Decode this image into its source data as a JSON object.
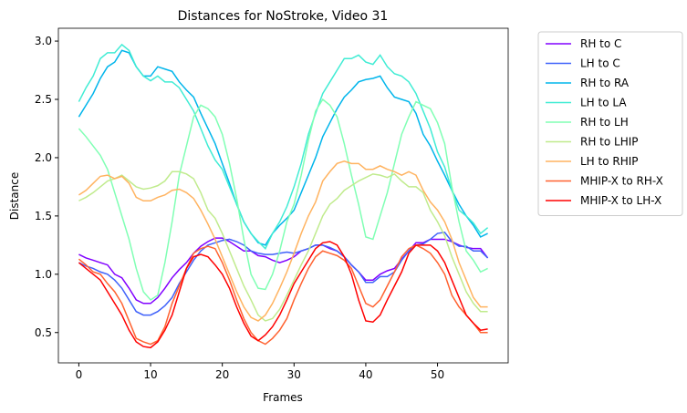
{
  "chart_data": {
    "type": "line",
    "title": "Distances for NoStroke, Video 31",
    "x_label": "Frames",
    "y_label": "Distance",
    "x": [
      0,
      1,
      2,
      3,
      4,
      5,
      6,
      7,
      8,
      9,
      10,
      11,
      12,
      13,
      14,
      15,
      16,
      17,
      18,
      19,
      20,
      21,
      22,
      23,
      24,
      25,
      26,
      27,
      28,
      29,
      30,
      31,
      32,
      33,
      34,
      35,
      36,
      37,
      38,
      39,
      40,
      41,
      42,
      43,
      44,
      45,
      46,
      47,
      48,
      49,
      50,
      51,
      52,
      53,
      54,
      55,
      56,
      57
    ],
    "xlim": [
      -2.85,
      59.85
    ],
    "xticks": [
      0,
      10,
      20,
      30,
      40,
      50
    ],
    "ylim": [
      0.24,
      3.11
    ],
    "yticks": [
      0.5,
      {
        "value": 1,
        "label": "1.0"
      },
      1.5,
      {
        "value": 2,
        "label": "2.0"
      },
      2.5,
      {
        "value": 3,
        "label": "3.0"
      }
    ],
    "legend": "outside upper right",
    "series": [
      {
        "name": "RH to C",
        "color": "#8000ff",
        "values": [
          1.17,
          1.14,
          1.12,
          1.1,
          1.08,
          1.0,
          0.97,
          0.88,
          0.78,
          0.75,
          0.75,
          0.8,
          0.88,
          0.97,
          1.04,
          1.1,
          1.18,
          1.24,
          1.28,
          1.31,
          1.31,
          1.28,
          1.24,
          1.2,
          1.2,
          1.16,
          1.15,
          1.12,
          1.1,
          1.12,
          1.15,
          1.2,
          1.22,
          1.25,
          1.25,
          1.22,
          1.2,
          1.15,
          1.08,
          1.02,
          0.95,
          0.95,
          1.0,
          1.03,
          1.05,
          1.13,
          1.2,
          1.27,
          1.27,
          1.3,
          1.3,
          1.3,
          1.28,
          1.25,
          1.23,
          1.22,
          1.22,
          1.14
        ]
      },
      {
        "name": "LH to C",
        "color": "#4062fa",
        "values": [
          1.1,
          1.07,
          1.05,
          1.02,
          1.0,
          0.95,
          0.88,
          0.78,
          0.68,
          0.65,
          0.65,
          0.68,
          0.73,
          0.8,
          0.92,
          1.02,
          1.12,
          1.2,
          1.25,
          1.27,
          1.29,
          1.3,
          1.28,
          1.25,
          1.2,
          1.18,
          1.17,
          1.17,
          1.18,
          1.19,
          1.18,
          1.2,
          1.22,
          1.25,
          1.25,
          1.23,
          1.2,
          1.15,
          1.08,
          1.02,
          0.93,
          0.93,
          0.98,
          0.98,
          1.02,
          1.12,
          1.2,
          1.25,
          1.26,
          1.3,
          1.35,
          1.36,
          1.28,
          1.24,
          1.24,
          1.2,
          1.2,
          1.14
        ]
      },
      {
        "name": "RH to RA",
        "color": "#00b5eb",
        "values": [
          2.35,
          2.45,
          2.55,
          2.68,
          2.78,
          2.82,
          2.92,
          2.9,
          2.78,
          2.7,
          2.7,
          2.78,
          2.76,
          2.74,
          2.65,
          2.58,
          2.52,
          2.38,
          2.25,
          2.12,
          1.95,
          1.78,
          1.6,
          1.45,
          1.35,
          1.27,
          1.25,
          1.35,
          1.42,
          1.48,
          1.55,
          1.7,
          1.85,
          2.0,
          2.18,
          2.3,
          2.42,
          2.52,
          2.58,
          2.65,
          2.67,
          2.68,
          2.7,
          2.6,
          2.52,
          2.5,
          2.48,
          2.38,
          2.2,
          2.1,
          1.97,
          1.85,
          1.72,
          1.6,
          1.5,
          1.42,
          1.32,
          1.35
        ]
      },
      {
        "name": "LH to LA",
        "color": "#40ecd4",
        "values": [
          2.48,
          2.6,
          2.7,
          2.85,
          2.9,
          2.9,
          2.97,
          2.92,
          2.78,
          2.7,
          2.66,
          2.7,
          2.65,
          2.65,
          2.6,
          2.5,
          2.4,
          2.25,
          2.1,
          1.98,
          1.9,
          1.75,
          1.6,
          1.45,
          1.35,
          1.28,
          1.22,
          1.35,
          1.45,
          1.58,
          1.75,
          1.95,
          2.2,
          2.38,
          2.55,
          2.65,
          2.75,
          2.85,
          2.85,
          2.88,
          2.82,
          2.8,
          2.88,
          2.78,
          2.72,
          2.7,
          2.65,
          2.55,
          2.4,
          2.25,
          2.05,
          1.92,
          1.72,
          1.55,
          1.5,
          1.44,
          1.35,
          1.4
        ]
      },
      {
        "name": "RH to LH",
        "color": "#80ffb4",
        "values": [
          2.25,
          2.18,
          2.1,
          2.02,
          1.9,
          1.7,
          1.5,
          1.3,
          1.05,
          0.85,
          0.78,
          0.82,
          1.1,
          1.45,
          1.85,
          2.1,
          2.35,
          2.45,
          2.42,
          2.35,
          2.2,
          1.95,
          1.65,
          1.3,
          1.0,
          0.88,
          0.87,
          1.0,
          1.2,
          1.45,
          1.6,
          1.85,
          2.15,
          2.4,
          2.5,
          2.45,
          2.35,
          2.12,
          1.85,
          1.6,
          1.32,
          1.3,
          1.5,
          1.7,
          1.95,
          2.2,
          2.35,
          2.48,
          2.45,
          2.42,
          2.3,
          2.12,
          1.75,
          1.45,
          1.2,
          1.12,
          1.02,
          1.05
        ]
      },
      {
        "name": "RH to LHIP",
        "color": "#c0eb8d",
        "values": [
          1.63,
          1.66,
          1.7,
          1.75,
          1.8,
          1.82,
          1.85,
          1.8,
          1.75,
          1.73,
          1.74,
          1.76,
          1.8,
          1.88,
          1.88,
          1.86,
          1.82,
          1.7,
          1.55,
          1.48,
          1.35,
          1.2,
          1.05,
          0.9,
          0.78,
          0.65,
          0.6,
          0.62,
          0.7,
          0.82,
          0.95,
          1.08,
          1.2,
          1.35,
          1.5,
          1.6,
          1.65,
          1.72,
          1.76,
          1.8,
          1.83,
          1.86,
          1.85,
          1.83,
          1.86,
          1.8,
          1.75,
          1.75,
          1.7,
          1.55,
          1.45,
          1.33,
          1.15,
          1.0,
          0.85,
          0.75,
          0.68,
          0.68
        ]
      },
      {
        "name": "LH to RHIP",
        "color": "#ffb360",
        "values": [
          1.68,
          1.72,
          1.78,
          1.84,
          1.85,
          1.82,
          1.84,
          1.78,
          1.66,
          1.63,
          1.63,
          1.66,
          1.68,
          1.72,
          1.73,
          1.7,
          1.65,
          1.55,
          1.43,
          1.3,
          1.15,
          1.0,
          0.85,
          0.72,
          0.63,
          0.6,
          0.65,
          0.75,
          0.88,
          1.02,
          1.18,
          1.35,
          1.5,
          1.62,
          1.8,
          1.88,
          1.95,
          1.97,
          1.95,
          1.95,
          1.9,
          1.9,
          1.93,
          1.9,
          1.88,
          1.85,
          1.88,
          1.85,
          1.72,
          1.62,
          1.55,
          1.45,
          1.3,
          1.1,
          0.95,
          0.8,
          0.72,
          0.72
        ]
      },
      {
        "name": "MHIP-X to RH-X",
        "color": "#ff6230",
        "values": [
          1.13,
          1.08,
          1.02,
          1.0,
          0.92,
          0.85,
          0.75,
          0.6,
          0.45,
          0.42,
          0.4,
          0.43,
          0.55,
          0.75,
          0.9,
          1.05,
          1.18,
          1.22,
          1.24,
          1.22,
          1.1,
          0.95,
          0.78,
          0.62,
          0.5,
          0.43,
          0.4,
          0.45,
          0.52,
          0.62,
          0.78,
          0.92,
          1.05,
          1.15,
          1.2,
          1.18,
          1.16,
          1.12,
          1.05,
          0.9,
          0.75,
          0.72,
          0.78,
          0.9,
          1.02,
          1.15,
          1.22,
          1.25,
          1.22,
          1.18,
          1.1,
          1.0,
          0.82,
          0.72,
          0.65,
          0.58,
          0.5,
          0.5
        ]
      },
      {
        "name": "MHIP-X to LH-X",
        "color": "#ff0000",
        "values": [
          1.1,
          1.05,
          1.0,
          0.95,
          0.85,
          0.75,
          0.65,
          0.52,
          0.42,
          0.38,
          0.37,
          0.42,
          0.52,
          0.65,
          0.85,
          1.05,
          1.15,
          1.17,
          1.15,
          1.08,
          1.0,
          0.88,
          0.72,
          0.58,
          0.47,
          0.43,
          0.48,
          0.55,
          0.65,
          0.78,
          0.92,
          1.02,
          1.12,
          1.22,
          1.27,
          1.28,
          1.25,
          1.15,
          1.0,
          0.78,
          0.6,
          0.59,
          0.65,
          0.78,
          0.9,
          1.02,
          1.18,
          1.25,
          1.25,
          1.25,
          1.2,
          1.1,
          0.95,
          0.8,
          0.65,
          0.58,
          0.52,
          0.53
        ]
      }
    ]
  }
}
